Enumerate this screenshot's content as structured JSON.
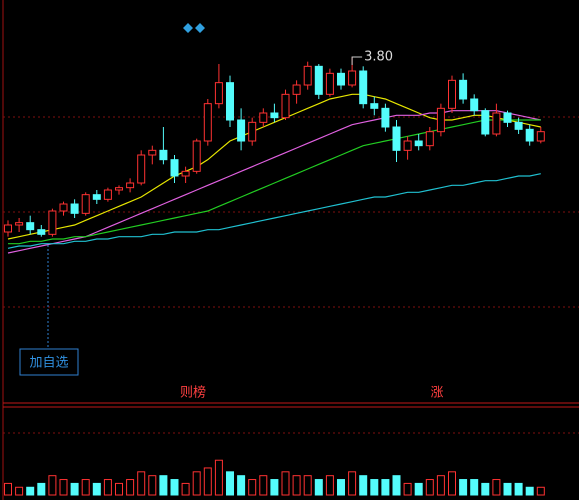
{
  "chart_data": {
    "type": "candlestick",
    "open": [
      3.05,
      3.08,
      3.09,
      3.06,
      3.04,
      3.14,
      3.17,
      3.13,
      3.21,
      3.19,
      3.23,
      3.24,
      3.26,
      3.38,
      3.4,
      3.36,
      3.29,
      3.31,
      3.44,
      3.6,
      3.69,
      3.53,
      3.44,
      3.52,
      3.56,
      3.54,
      3.64,
      3.68,
      3.76,
      3.64,
      3.73,
      3.68,
      3.74,
      3.6,
      3.58,
      3.5,
      3.4,
      3.44,
      3.42,
      3.48,
      3.58,
      3.7,
      3.62,
      3.57,
      3.47,
      3.56,
      3.52,
      3.49,
      3.44
    ],
    "high": [
      3.1,
      3.11,
      3.12,
      3.08,
      3.15,
      3.18,
      3.19,
      3.22,
      3.23,
      3.24,
      3.25,
      3.28,
      3.4,
      3.42,
      3.5,
      3.38,
      3.33,
      3.45,
      3.62,
      3.77,
      3.72,
      3.58,
      3.54,
      3.58,
      3.6,
      3.66,
      3.7,
      3.78,
      3.77,
      3.75,
      3.75,
      3.8,
      3.76,
      3.63,
      3.6,
      3.53,
      3.46,
      3.47,
      3.5,
      3.6,
      3.72,
      3.73,
      3.64,
      3.58,
      3.6,
      3.57,
      3.54,
      3.51,
      3.5
    ],
    "low": [
      3.03,
      3.05,
      3.04,
      3.03,
      3.03,
      3.12,
      3.11,
      3.12,
      3.17,
      3.18,
      3.21,
      3.22,
      3.25,
      3.34,
      3.34,
      3.26,
      3.26,
      3.3,
      3.42,
      3.58,
      3.5,
      3.4,
      3.42,
      3.5,
      3.52,
      3.53,
      3.6,
      3.66,
      3.62,
      3.63,
      3.66,
      3.67,
      3.58,
      3.55,
      3.48,
      3.35,
      3.36,
      3.4,
      3.4,
      3.46,
      3.56,
      3.6,
      3.55,
      3.46,
      3.46,
      3.5,
      3.47,
      3.42,
      3.43
    ],
    "close": [
      3.08,
      3.09,
      3.06,
      3.04,
      3.14,
      3.17,
      3.13,
      3.21,
      3.19,
      3.23,
      3.24,
      3.26,
      3.38,
      3.4,
      3.36,
      3.29,
      3.31,
      3.44,
      3.6,
      3.69,
      3.53,
      3.44,
      3.52,
      3.56,
      3.54,
      3.64,
      3.68,
      3.76,
      3.64,
      3.73,
      3.68,
      3.74,
      3.6,
      3.58,
      3.5,
      3.4,
      3.44,
      3.42,
      3.48,
      3.58,
      3.7,
      3.62,
      3.57,
      3.47,
      3.56,
      3.52,
      3.49,
      3.44,
      3.48
    ],
    "volume": [
      3,
      2,
      2,
      3,
      5,
      4,
      3,
      4,
      3,
      4,
      3,
      4,
      6,
      5,
      5,
      4,
      3,
      6,
      7,
      9,
      6,
      5,
      4,
      5,
      4,
      6,
      5,
      5,
      4,
      5,
      4,
      6,
      5,
      4,
      4,
      5,
      3,
      3,
      4,
      5,
      6,
      4,
      4,
      3,
      4,
      3,
      3,
      2,
      2
    ],
    "ylim": [
      2.33,
      3.98
    ],
    "volume_ylim": [
      0,
      22
    ],
    "up_color": "#ff3232",
    "down_color": "#54fcfc",
    "series": [
      {
        "color": "#e6e600",
        "values": [
          3.02,
          3.03,
          3.04,
          3.05,
          3.06,
          3.07,
          3.08,
          3.1,
          3.12,
          3.14,
          3.16,
          3.18,
          3.2,
          3.23,
          3.26,
          3.29,
          3.31,
          3.33,
          3.36,
          3.4,
          3.44,
          3.46,
          3.48,
          3.5,
          3.52,
          3.54,
          3.56,
          3.58,
          3.6,
          3.62,
          3.63,
          3.64,
          3.64,
          3.63,
          3.62,
          3.6,
          3.58,
          3.56,
          3.54,
          3.53,
          3.53,
          3.54,
          3.55,
          3.55,
          3.54,
          3.53,
          3.52,
          3.51,
          3.5
        ]
      },
      {
        "color": "#e060e0",
        "values": [
          2.96,
          2.97,
          2.98,
          2.99,
          3.0,
          3.01,
          3.02,
          3.03,
          3.05,
          3.07,
          3.09,
          3.11,
          3.13,
          3.15,
          3.17,
          3.19,
          3.21,
          3.23,
          3.25,
          3.27,
          3.29,
          3.31,
          3.33,
          3.35,
          3.37,
          3.39,
          3.41,
          3.43,
          3.45,
          3.47,
          3.49,
          3.51,
          3.52,
          3.53,
          3.54,
          3.55,
          3.55,
          3.55,
          3.56,
          3.56,
          3.57,
          3.57,
          3.57,
          3.57,
          3.57,
          3.56,
          3.55,
          3.54,
          3.53
        ]
      },
      {
        "color": "#22cc22",
        "values": [
          3.0,
          3.0,
          3.01,
          3.01,
          3.02,
          3.02,
          3.03,
          3.03,
          3.04,
          3.05,
          3.06,
          3.07,
          3.08,
          3.09,
          3.1,
          3.11,
          3.12,
          3.13,
          3.14,
          3.16,
          3.18,
          3.2,
          3.22,
          3.24,
          3.26,
          3.28,
          3.3,
          3.32,
          3.34,
          3.36,
          3.38,
          3.4,
          3.42,
          3.43,
          3.44,
          3.45,
          3.46,
          3.47,
          3.48,
          3.49,
          3.5,
          3.51,
          3.52,
          3.53,
          3.53,
          3.53,
          3.53,
          3.53,
          3.53
        ]
      },
      {
        "color": "#20c0d0",
        "values": [
          2.98,
          2.99,
          2.99,
          3.0,
          3.0,
          3.0,
          3.01,
          3.01,
          3.02,
          3.02,
          3.03,
          3.03,
          3.03,
          3.04,
          3.04,
          3.05,
          3.05,
          3.05,
          3.06,
          3.06,
          3.07,
          3.08,
          3.09,
          3.1,
          3.11,
          3.12,
          3.13,
          3.14,
          3.15,
          3.16,
          3.17,
          3.18,
          3.19,
          3.2,
          3.2,
          3.21,
          3.22,
          3.22,
          3.23,
          3.24,
          3.25,
          3.25,
          3.26,
          3.27,
          3.27,
          3.28,
          3.29,
          3.29,
          3.3
        ]
      }
    ],
    "high_label": "3.80",
    "add_button": "加自选",
    "markers": [
      "则榜",
      "涨"
    ]
  }
}
